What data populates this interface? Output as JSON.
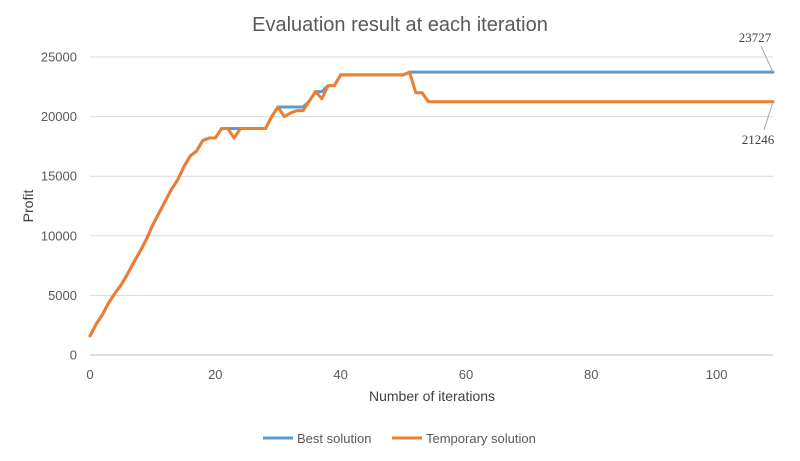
{
  "chart_data": {
    "type": "line",
    "title": "Evaluation result at each iteration",
    "xlabel": "Number of iterations",
    "ylabel": "Profit",
    "xlim": [
      0,
      109
    ],
    "ylim": [
      0,
      25000
    ],
    "x_ticks": [
      "0",
      "20",
      "40",
      "60",
      "80",
      "100"
    ],
    "y_ticks": [
      "0",
      "5000",
      "10000",
      "15000",
      "20000",
      "25000"
    ],
    "grid": "horizontal",
    "legend_position": "bottom",
    "colors": {
      "best": "#5B9BD5",
      "temporary": "#ED7D31",
      "grid": "#D9D9D9",
      "axis": "#BFBFBF"
    },
    "series": [
      {
        "name": "Best solution",
        "x": [
          0,
          1,
          2,
          3,
          4,
          5,
          6,
          7,
          8,
          9,
          10,
          11,
          12,
          13,
          14,
          15,
          16,
          17,
          18,
          19,
          20,
          21,
          22,
          23,
          24,
          25,
          26,
          27,
          28,
          29,
          30,
          31,
          32,
          33,
          34,
          35,
          36,
          37,
          38,
          39,
          40,
          41,
          42,
          43,
          44,
          45,
          46,
          47,
          48,
          49,
          50,
          51,
          52,
          53,
          54,
          55,
          56,
          57,
          58,
          59,
          60,
          61,
          62,
          63,
          64,
          65,
          66,
          67,
          68,
          69,
          70,
          71,
          72,
          73,
          74,
          75,
          76,
          77,
          78,
          79,
          80,
          81,
          82,
          83,
          84,
          85,
          86,
          87,
          88,
          89,
          90,
          91,
          92,
          93,
          94,
          95,
          96,
          97,
          98,
          99,
          100,
          101,
          102,
          103,
          104,
          105,
          106,
          107,
          108,
          109
        ],
        "values": [
          1600,
          2600,
          3400,
          4400,
          5200,
          5900,
          6800,
          7800,
          8700,
          9700,
          10900,
          11900,
          12900,
          13900,
          14700,
          15800,
          16700,
          17100,
          18000,
          18200,
          18200,
          19000,
          19000,
          19000,
          19000,
          19000,
          19000,
          19000,
          19000,
          20000,
          20800,
          20800,
          20800,
          20800,
          20800,
          21300,
          22100,
          22100,
          22600,
          22600,
          23500,
          23500,
          23500,
          23500,
          23500,
          23500,
          23500,
          23500,
          23500,
          23500,
          23500,
          23727,
          23727,
          23727,
          23727,
          23727,
          23727,
          23727,
          23727,
          23727,
          23727,
          23727,
          23727,
          23727,
          23727,
          23727,
          23727,
          23727,
          23727,
          23727,
          23727,
          23727,
          23727,
          23727,
          23727,
          23727,
          23727,
          23727,
          23727,
          23727,
          23727,
          23727,
          23727,
          23727,
          23727,
          23727,
          23727,
          23727,
          23727,
          23727,
          23727,
          23727,
          23727,
          23727,
          23727,
          23727,
          23727,
          23727,
          23727,
          23727,
          23727,
          23727,
          23727,
          23727,
          23727,
          23727,
          23727,
          23727,
          23727,
          23727
        ]
      },
      {
        "name": "Temporary solution",
        "x": [
          0,
          1,
          2,
          3,
          4,
          5,
          6,
          7,
          8,
          9,
          10,
          11,
          12,
          13,
          14,
          15,
          16,
          17,
          18,
          19,
          20,
          21,
          22,
          23,
          24,
          25,
          26,
          27,
          28,
          29,
          30,
          31,
          32,
          33,
          34,
          35,
          36,
          37,
          38,
          39,
          40,
          41,
          42,
          43,
          44,
          45,
          46,
          47,
          48,
          49,
          50,
          51,
          52,
          53,
          54,
          55,
          56,
          57,
          58,
          59,
          60,
          61,
          62,
          63,
          64,
          65,
          66,
          67,
          68,
          69,
          70,
          71,
          72,
          73,
          74,
          75,
          76,
          77,
          78,
          79,
          80,
          81,
          82,
          83,
          84,
          85,
          86,
          87,
          88,
          89,
          90,
          91,
          92,
          93,
          94,
          95,
          96,
          97,
          98,
          99,
          100,
          101,
          102,
          103,
          104,
          105,
          106,
          107,
          108,
          109
        ],
        "values": [
          1600,
          2600,
          3400,
          4400,
          5200,
          5900,
          6800,
          7800,
          8700,
          9700,
          10900,
          11900,
          12900,
          13900,
          14700,
          15800,
          16700,
          17100,
          18000,
          18200,
          18200,
          19000,
          19000,
          18200,
          19000,
          19000,
          19000,
          19000,
          19000,
          20000,
          20800,
          20000,
          20300,
          20500,
          20500,
          21300,
          22100,
          21500,
          22600,
          22600,
          23500,
          23500,
          23500,
          23500,
          23500,
          23500,
          23500,
          23500,
          23500,
          23500,
          23500,
          23727,
          22000,
          22000,
          21246,
          21246,
          21246,
          21246,
          21246,
          21246,
          21246,
          21246,
          21246,
          21246,
          21246,
          21246,
          21246,
          21246,
          21246,
          21246,
          21246,
          21246,
          21246,
          21246,
          21246,
          21246,
          21246,
          21246,
          21246,
          21246,
          21246,
          21246,
          21246,
          21246,
          21246,
          21246,
          21246,
          21246,
          21246,
          21246,
          21246,
          21246,
          21246,
          21246,
          21246,
          21246,
          21246,
          21246,
          21246,
          21246,
          21246,
          21246,
          21246,
          21246,
          21246,
          21246,
          21246,
          21246,
          21246,
          21246
        ]
      }
    ],
    "annotations": [
      {
        "text": "23727",
        "series": "Best solution",
        "x": 109,
        "y": 23727
      },
      {
        "text": "21246",
        "series": "Temporary solution",
        "x": 109,
        "y": 21246
      }
    ]
  }
}
